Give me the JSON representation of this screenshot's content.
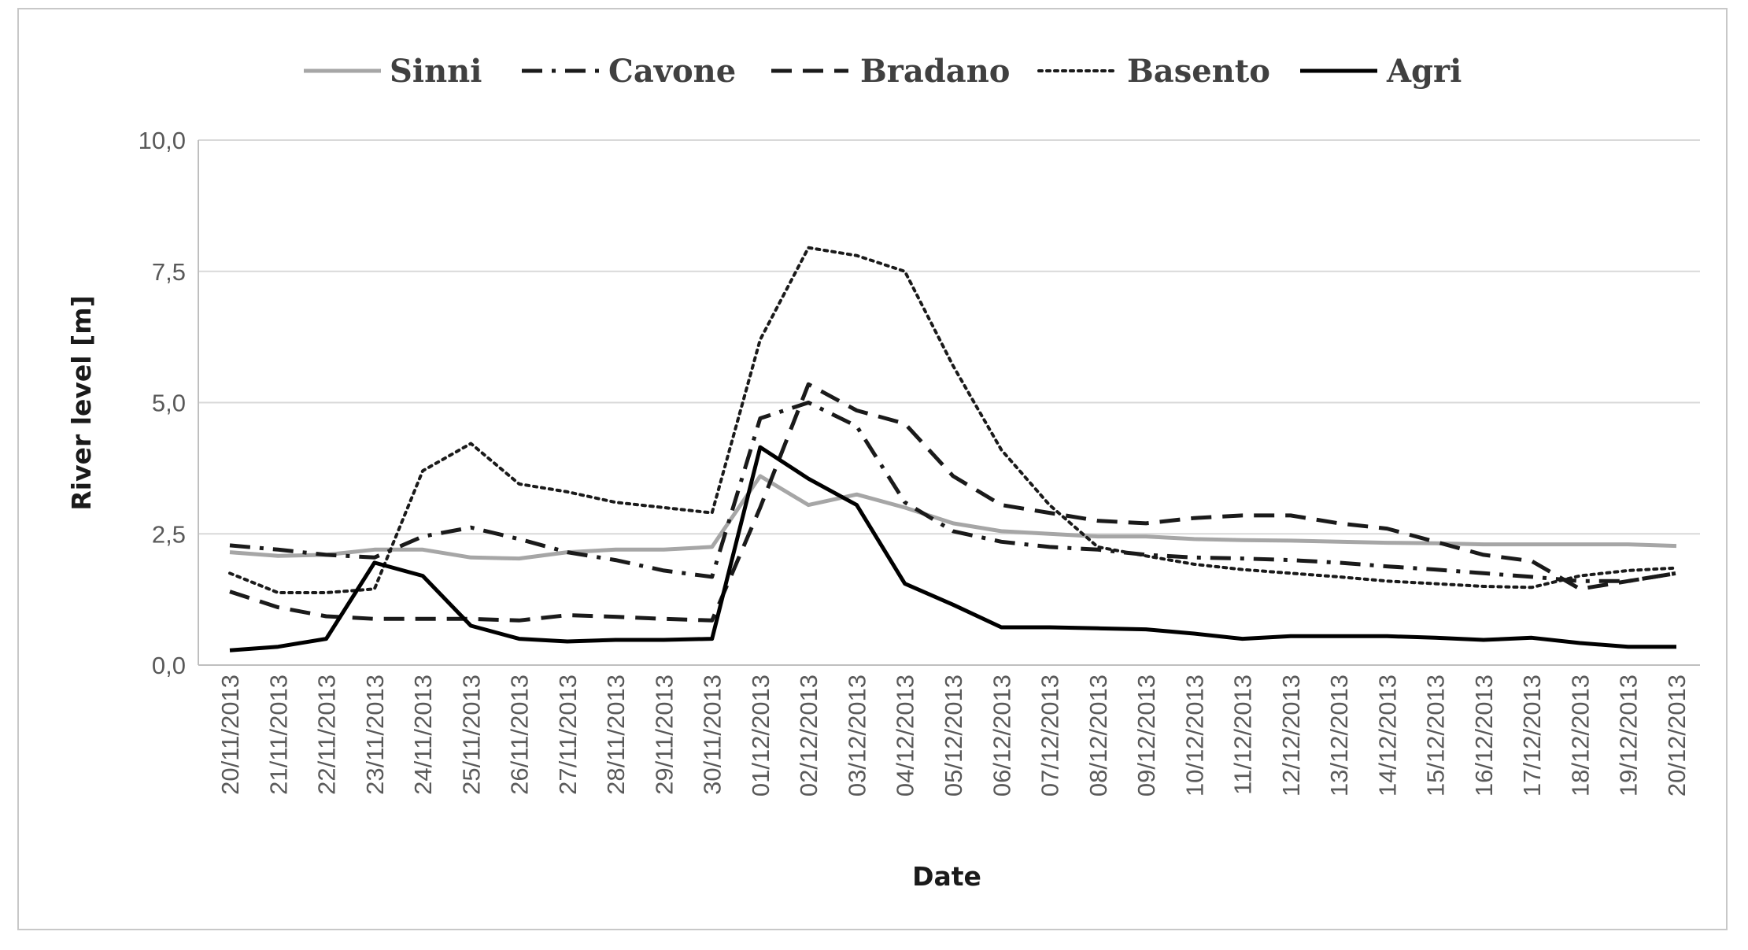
{
  "chart_data": {
    "type": "line",
    "xlabel": "Date",
    "ylabel": "River level [m]",
    "ylim": [
      0,
      10
    ],
    "yticks": [
      "0,0",
      "2,5",
      "5,0",
      "7,5",
      "10,0"
    ],
    "grid": "horizontal",
    "legend_position": "top",
    "categories": [
      "20/11/2013",
      "21/11/2013",
      "22/11/2013",
      "23/11/2013",
      "24/11/2013",
      "25/11/2013",
      "26/11/2013",
      "27/11/2013",
      "28/11/2013",
      "29/11/2013",
      "30/11/2013",
      "01/12/2013",
      "02/12/2013",
      "03/12/2013",
      "04/12/2013",
      "05/12/2013",
      "06/12/2013",
      "07/12/2013",
      "08/12/2013",
      "09/12/2013",
      "10/12/2013",
      "11/12/2013",
      "12/12/2013",
      "13/12/2013",
      "14/12/2013",
      "15/12/2013",
      "16/12/2013",
      "17/12/2013",
      "18/12/2013",
      "19/12/2013",
      "20/12/2013"
    ],
    "series": [
      {
        "name": "Sinni",
        "style": "solid",
        "color": "#a6a6a6",
        "values": [
          2.15,
          2.08,
          2.1,
          2.2,
          2.2,
          2.05,
          2.03,
          2.15,
          2.2,
          2.2,
          2.25,
          3.6,
          3.05,
          3.25,
          3.0,
          2.7,
          2.55,
          2.5,
          2.45,
          2.45,
          2.4,
          2.38,
          2.37,
          2.35,
          2.33,
          2.32,
          2.3,
          2.3,
          2.3,
          2.3,
          2.27
        ]
      },
      {
        "name": "Cavone",
        "style": "dash-dot",
        "color": "#1a1a1a",
        "values": [
          2.28,
          2.2,
          2.1,
          2.05,
          2.45,
          2.62,
          2.4,
          2.15,
          2.0,
          1.8,
          1.68,
          4.7,
          5.0,
          4.55,
          3.1,
          2.55,
          2.35,
          2.25,
          2.2,
          2.1,
          2.05,
          2.03,
          2.0,
          1.95,
          1.88,
          1.82,
          1.75,
          1.68,
          1.6,
          1.6,
          1.75
        ]
      },
      {
        "name": "Bradano",
        "style": "dashed",
        "color": "#1a1a1a",
        "values": [
          1.4,
          1.1,
          0.93,
          0.88,
          0.88,
          0.88,
          0.85,
          0.95,
          0.92,
          0.88,
          0.85,
          3.0,
          5.35,
          4.85,
          4.6,
          3.6,
          3.05,
          2.9,
          2.75,
          2.7,
          2.8,
          2.85,
          2.85,
          2.7,
          2.6,
          2.35,
          2.1,
          1.98,
          1.45,
          1.6,
          1.75
        ]
      },
      {
        "name": "Basento",
        "style": "dotted",
        "color": "#1a1a1a",
        "values": [
          1.75,
          1.38,
          1.38,
          1.45,
          3.7,
          4.22,
          3.45,
          3.3,
          3.1,
          3.0,
          2.9,
          6.2,
          7.95,
          7.8,
          7.5,
          5.7,
          4.1,
          3.05,
          2.25,
          2.08,
          1.92,
          1.82,
          1.75,
          1.68,
          1.6,
          1.55,
          1.5,
          1.48,
          1.7,
          1.8,
          1.85
        ]
      },
      {
        "name": "Agri",
        "style": "solid",
        "color": "#000000",
        "values": [
          0.28,
          0.35,
          0.5,
          1.95,
          1.7,
          0.75,
          0.5,
          0.45,
          0.48,
          0.48,
          0.5,
          4.15,
          3.55,
          3.05,
          1.55,
          1.15,
          0.72,
          0.72,
          0.7,
          0.68,
          0.6,
          0.5,
          0.55,
          0.55,
          0.55,
          0.52,
          0.48,
          0.52,
          0.42,
          0.35,
          0.35
        ]
      }
    ]
  }
}
